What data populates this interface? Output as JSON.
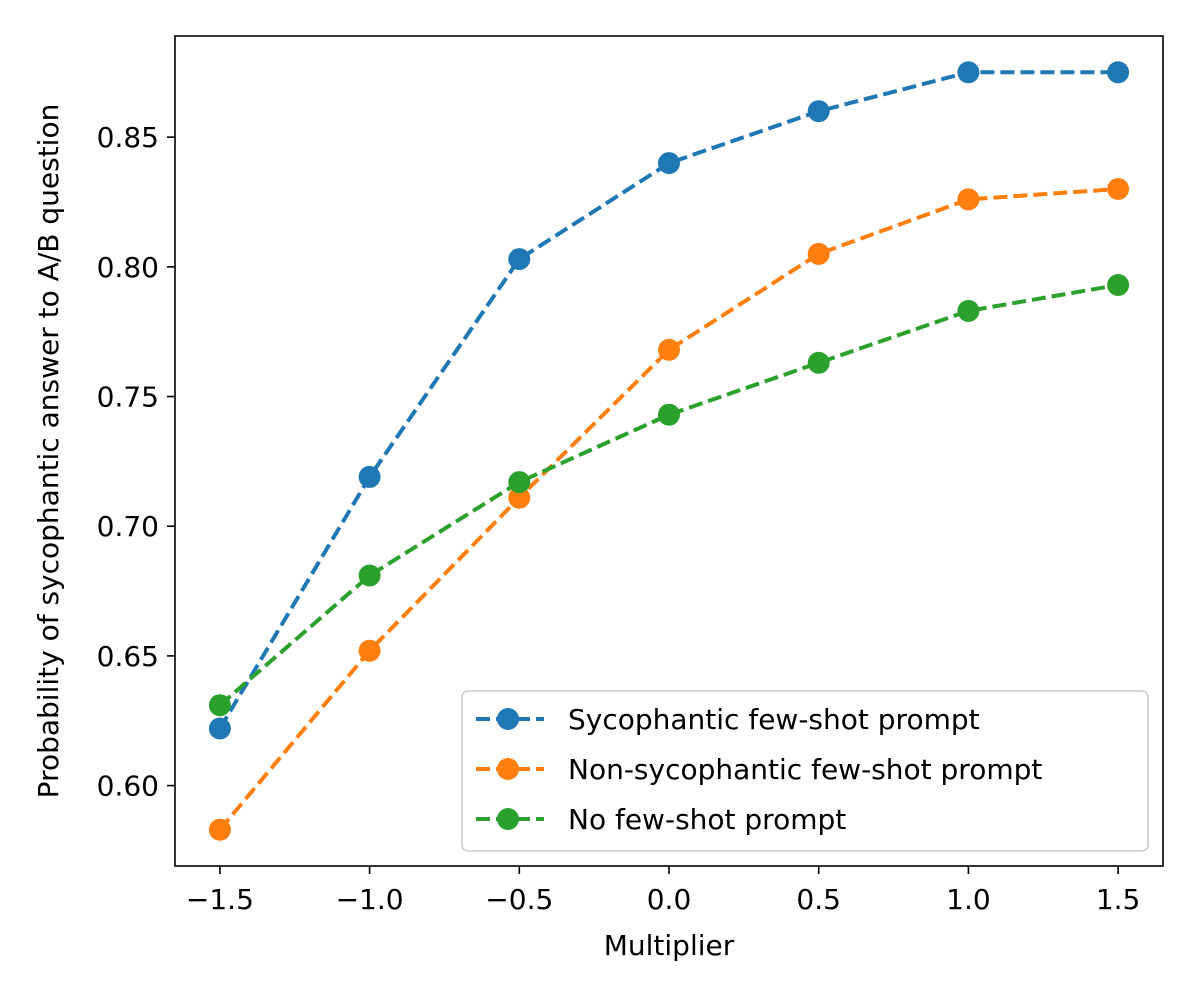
{
  "chart_data": {
    "type": "line",
    "xlabel": "Multiplier",
    "ylabel": "Probability of sycophantic answer to A/B question",
    "xlim": [
      -1.65,
      1.65
    ],
    "ylim": [
      0.569,
      0.889
    ],
    "x_ticks": [
      -1.5,
      -1.0,
      -0.5,
      0.0,
      0.5,
      1.0,
      1.5
    ],
    "x_tick_labels": [
      "−1.5",
      "−1.0",
      "−0.5",
      "0.0",
      "0.5",
      "1.0",
      "1.5"
    ],
    "y_ticks": [
      0.6,
      0.65,
      0.7,
      0.75,
      0.8,
      0.85
    ],
    "y_tick_labels": [
      "0.60",
      "0.65",
      "0.70",
      "0.75",
      "0.80",
      "0.85"
    ],
    "grid": false,
    "legend_position": "lower-right",
    "x": [
      -1.5,
      -1.0,
      -0.5,
      0.0,
      0.5,
      1.0,
      1.5
    ],
    "series": [
      {
        "name": "Sycophantic few-shot prompt",
        "color": "#1f77b4",
        "values": [
          0.622,
          0.719,
          0.803,
          0.84,
          0.86,
          0.875,
          0.875
        ]
      },
      {
        "name": "Non-sycophantic few-shot prompt",
        "color": "#ff7f0e",
        "values": [
          0.583,
          0.652,
          0.711,
          0.768,
          0.805,
          0.826,
          0.83
        ]
      },
      {
        "name": "No few-shot prompt",
        "color": "#2ca02c",
        "values": [
          0.631,
          0.681,
          0.717,
          0.743,
          0.763,
          0.783,
          0.793
        ]
      }
    ]
  }
}
